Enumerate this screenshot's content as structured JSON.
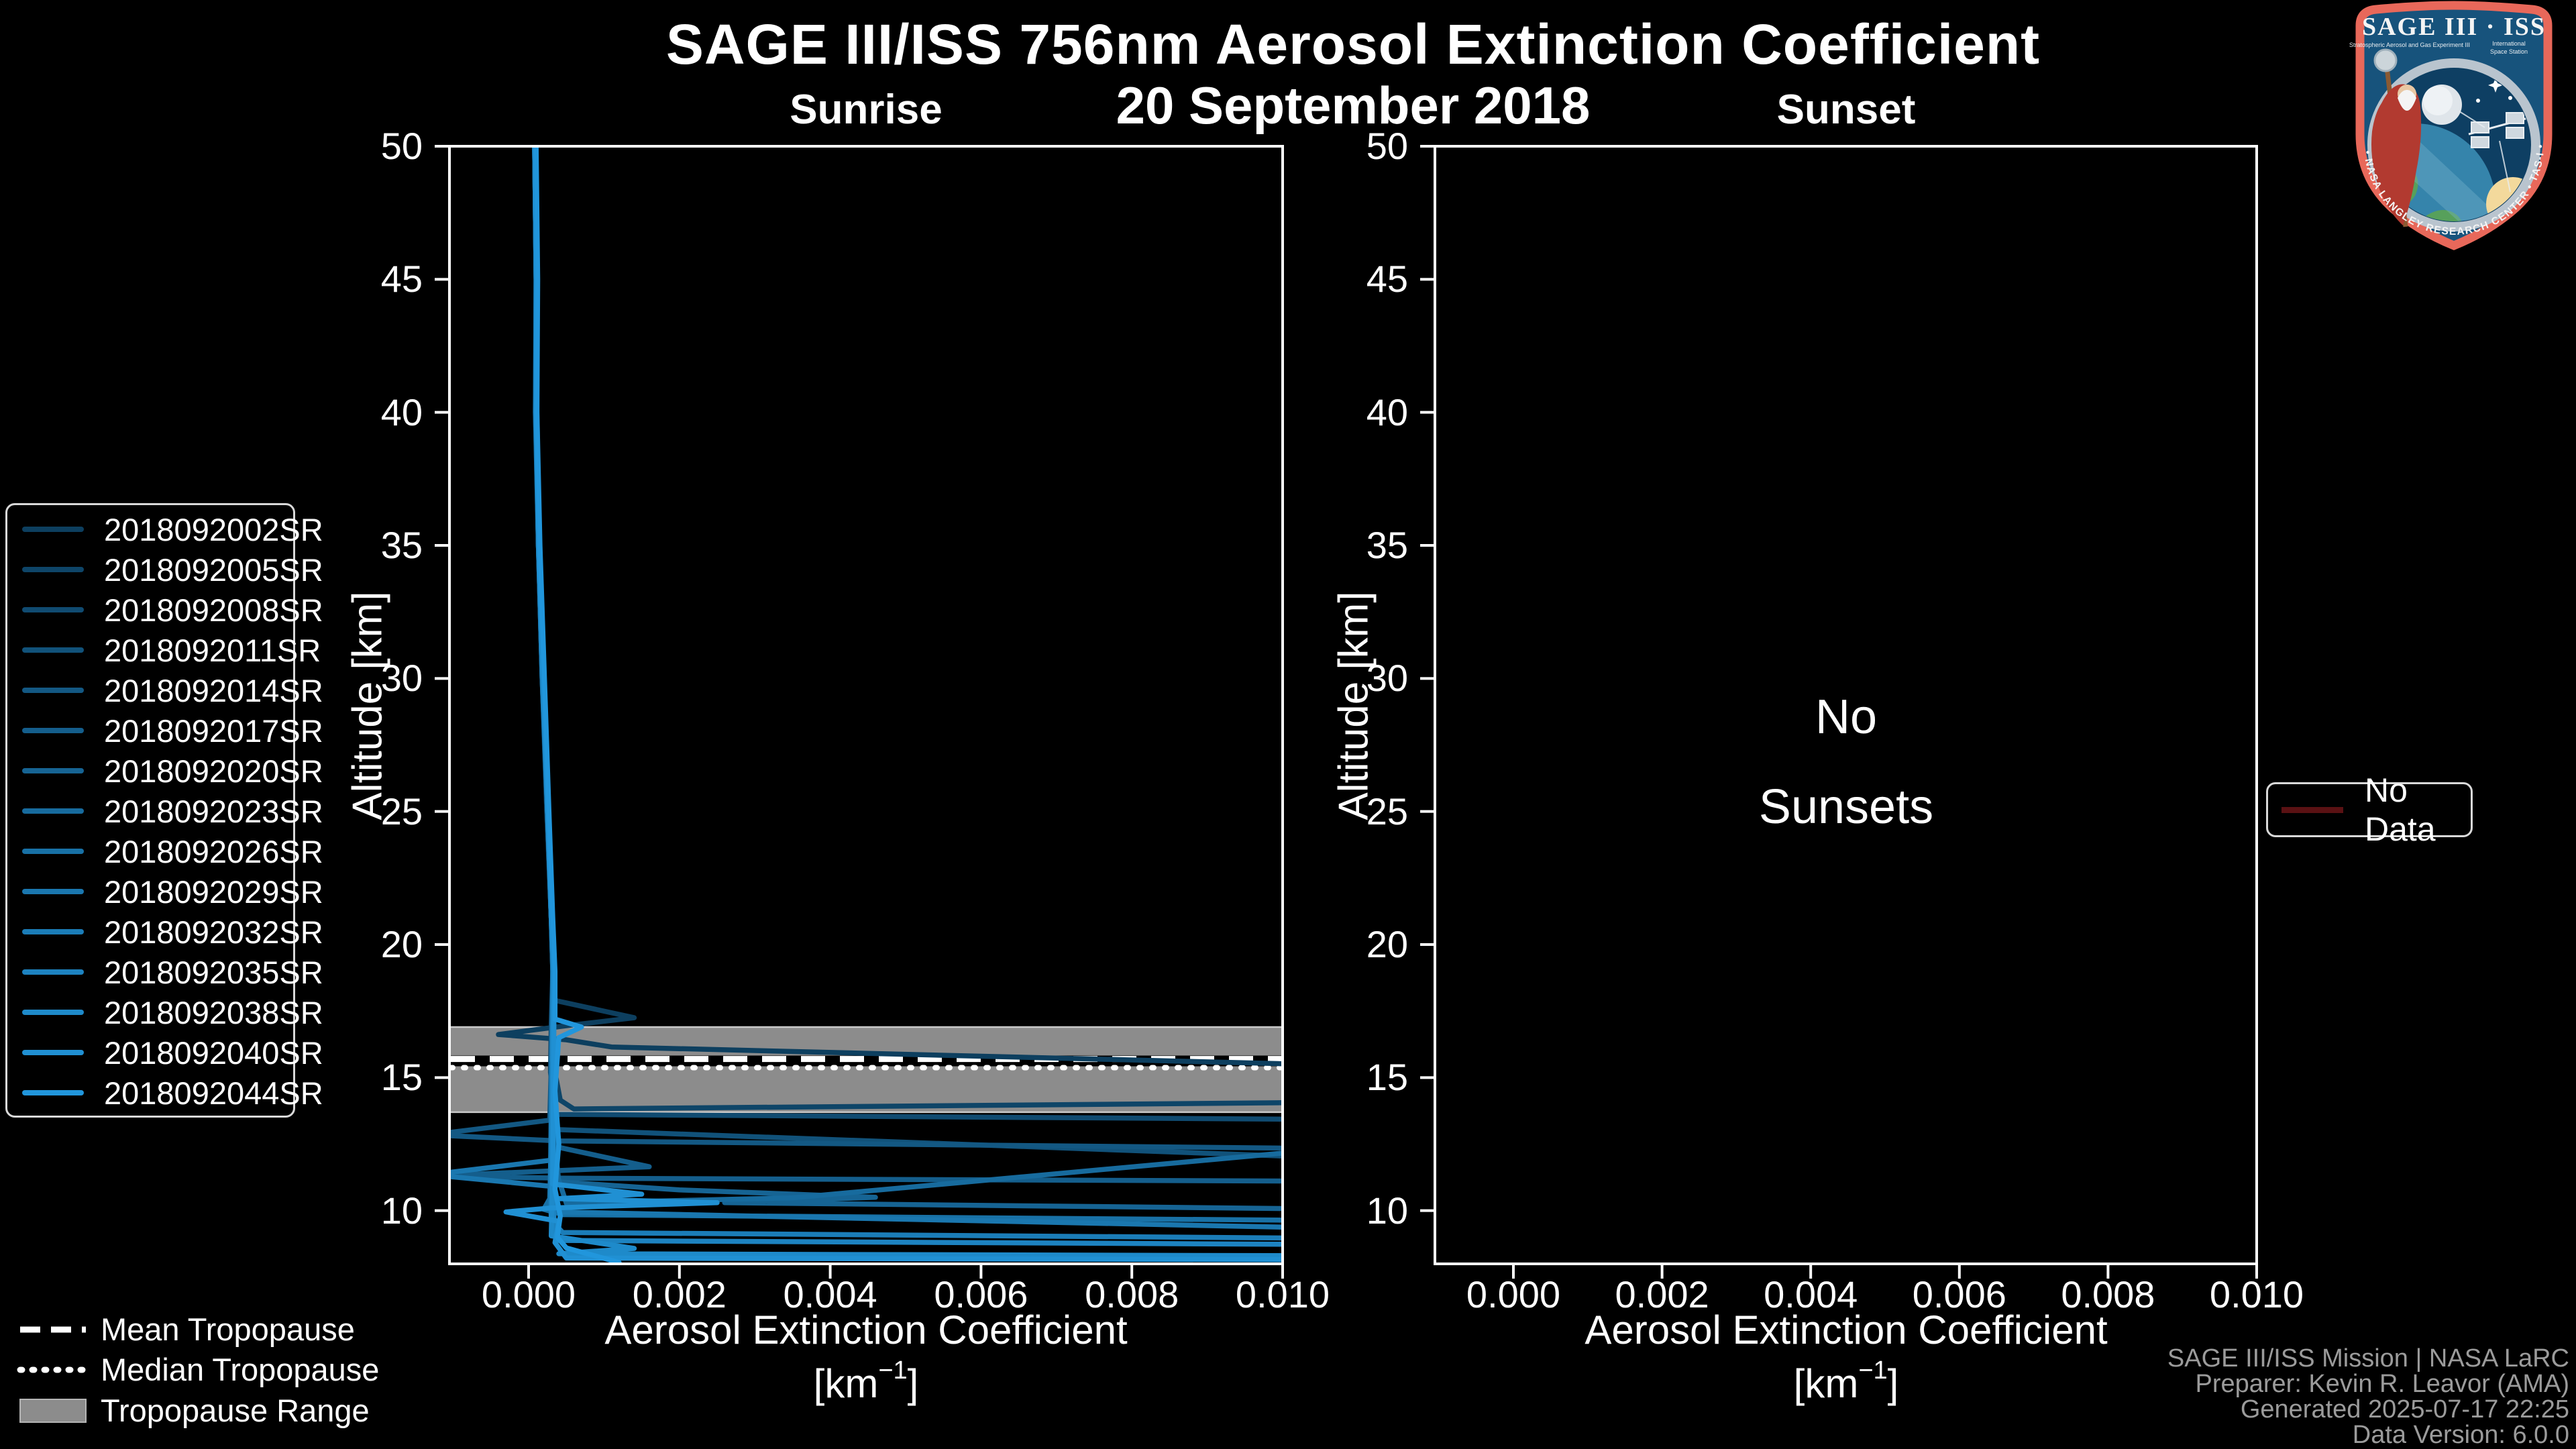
{
  "header": {
    "title": "SAGE III/ISS 756nm Aerosol Extinction Coefficient",
    "date": "20 September 2018"
  },
  "axes": {
    "y_label": "Altitude [km]",
    "x_label": "Aerosol Extinction Coefficient",
    "x_unit_base": "[km",
    "x_unit_sup": "−1",
    "x_unit_end": "]"
  },
  "tropopause_legend": {
    "mean_label": "Mean Tropopause",
    "median_label": "Median Tropopause",
    "range_label": "Tropopause Range"
  },
  "no_data_legend": {
    "label": "No Data",
    "line_color": "#5a1113"
  },
  "attribution": {
    "lines": [
      "SAGE III/ISS Mission | NASA LaRC",
      "Preparer: Kevin R. Leavor (AMA)",
      "Generated 2025-07-17 22:25",
      "Data Version: 6.0.0"
    ]
  },
  "logo": {
    "title": "SAGE III · ISS",
    "subtitle_left": "Stratospheric Aerosol and Gas Experiment III",
    "subtitle_right_1": "International",
    "subtitle_right_2": "Space Station",
    "ring_text": "BALL • NASA LANGLEY RESEARCH CENTER • TAS-I • ESA",
    "border_color": "#e8685a",
    "field_color": "#17537c"
  },
  "colors": {
    "background": "#000000",
    "foreground": "#ffffff",
    "attribution_text": "#9b9b9b",
    "tropopause_band": "#8c8c8c"
  },
  "chart_data": [
    {
      "type": "line",
      "panel": "sunrise",
      "title": "Sunrise",
      "xlabel": "Aerosol Extinction Coefficient [km⁻¹]",
      "ylabel": "Altitude [km]",
      "xlim": [
        -0.00105,
        0.01
      ],
      "ylim": [
        8,
        50
      ],
      "x_ticks": [
        0.0,
        0.002,
        0.004,
        0.006,
        0.008,
        0.01
      ],
      "x_tick_labels": [
        "0.000",
        "0.002",
        "0.004",
        "0.006",
        "0.008",
        "0.010"
      ],
      "y_ticks": [
        50,
        45,
        40,
        35,
        30,
        25,
        20,
        15,
        10
      ],
      "y_tick_labels": [
        "50",
        "45",
        "40",
        "35",
        "30",
        "25",
        "20",
        "15",
        "10"
      ],
      "grid": false,
      "tropopause": {
        "mean_km": 15.7,
        "median_km": 15.55,
        "range_km": [
          13.7,
          16.9
        ]
      },
      "series": [
        {
          "name": "2018092002SR",
          "color": "#0d3f5f",
          "points": [
            [
              8e-05,
              50
            ],
            [
              0.0001,
              45
            ],
            [
              9e-05,
              40
            ],
            [
              0.00013,
              35
            ],
            [
              0.00018,
              30
            ],
            [
              0.00024,
              25
            ],
            [
              0.0003,
              21
            ],
            [
              0.00033,
              19
            ],
            [
              0.00035,
              17.9
            ],
            [
              0.0014,
              17.25
            ],
            [
              0.0005,
              16.95
            ],
            [
              -0.0004,
              16.62
            ],
            [
              0.0005,
              16.42
            ],
            [
              0.0011,
              16.15
            ],
            [
              0.011,
              15.45
            ]
          ]
        },
        {
          "name": "2018092005SR",
          "color": "#0e4568",
          "points": [
            [
              9e-05,
              50
            ],
            [
              0.00011,
              45
            ],
            [
              0.0001,
              40
            ],
            [
              0.00014,
              35
            ],
            [
              0.00019,
              30
            ],
            [
              0.00025,
              25
            ],
            [
              0.00031,
              21
            ],
            [
              0.00034,
              19
            ],
            [
              0.00032,
              17.6
            ],
            [
              0.0003,
              16.4
            ],
            [
              0.00035,
              15.2
            ],
            [
              0.00042,
              14.15
            ],
            [
              0.0006,
              13.82
            ],
            [
              0.011,
              14.08
            ]
          ]
        },
        {
          "name": "2018092008SR",
          "color": "#104b71",
          "points": [
            [
              8e-05,
              50
            ],
            [
              0.0001,
              45
            ],
            [
              0.0001,
              40
            ],
            [
              0.00013,
              35
            ],
            [
              0.00018,
              30
            ],
            [
              0.00025,
              25
            ],
            [
              0.0003,
              21
            ],
            [
              0.00032,
              19
            ],
            [
              0.0003,
              17
            ],
            [
              0.00029,
              15.2
            ],
            [
              0.00036,
              13.62
            ],
            [
              0.011,
              13.42
            ]
          ]
        },
        {
          "name": "2018092011SR",
          "color": "#11527a",
          "points": [
            [
              9e-05,
              50
            ],
            [
              0.0001,
              45
            ],
            [
              0.00011,
              40
            ],
            [
              0.00014,
              35
            ],
            [
              0.00019,
              30
            ],
            [
              0.00026,
              25
            ],
            [
              0.00031,
              21
            ],
            [
              0.00033,
              19
            ],
            [
              0.00031,
              16.2
            ],
            [
              0.0003,
              14.2
            ],
            [
              0.00036,
              13.05
            ],
            [
              0.011,
              11.95
            ]
          ]
        },
        {
          "name": "2018092014SR",
          "color": "#135883",
          "points": [
            [
              8e-05,
              50
            ],
            [
              0.00011,
              45
            ],
            [
              0.0001,
              40
            ],
            [
              0.00014,
              35
            ],
            [
              0.00019,
              30
            ],
            [
              0.00025,
              25
            ],
            [
              0.00031,
              21
            ],
            [
              0.00033,
              19
            ],
            [
              0.0003,
              15.4
            ],
            [
              0.00028,
              13.4
            ],
            [
              -0.0013,
              12.85
            ],
            [
              0.0004,
              12.62
            ],
            [
              0.011,
              12.32
            ]
          ]
        },
        {
          "name": "2018092017SR",
          "color": "#145e8c",
          "points": [
            [
              9e-05,
              50
            ],
            [
              0.00011,
              45
            ],
            [
              0.0001,
              40
            ],
            [
              0.00014,
              35
            ],
            [
              0.0002,
              30
            ],
            [
              0.00026,
              25
            ],
            [
              0.00031,
              21
            ],
            [
              0.00034,
              19
            ],
            [
              0.00032,
              14.6
            ],
            [
              0.0004,
              12.38
            ],
            [
              0.0016,
              11.65
            ],
            [
              -0.0013,
              11.3
            ],
            [
              0.00045,
              11.22
            ],
            [
              0.011,
              11.1
            ]
          ]
        },
        {
          "name": "2018092020SR",
          "color": "#166494",
          "points": [
            [
              8e-05,
              50
            ],
            [
              0.0001,
              45
            ],
            [
              0.0001,
              40
            ],
            [
              0.00013,
              35
            ],
            [
              0.00019,
              30
            ],
            [
              0.00025,
              25
            ],
            [
              0.0003,
              21
            ],
            [
              0.00033,
              19
            ],
            [
              0.00031,
              13.6
            ],
            [
              0.0004,
              11.08
            ],
            [
              0.002,
              10.78
            ],
            [
              0.0046,
              10.5
            ],
            [
              0.0026,
              10.3
            ],
            [
              0.011,
              10.05
            ]
          ]
        },
        {
          "name": "2018092023SR",
          "color": "#176b9e",
          "points": [
            [
              9e-05,
              50
            ],
            [
              0.00011,
              45
            ],
            [
              0.0001,
              40
            ],
            [
              0.00014,
              35
            ],
            [
              0.00019,
              30
            ],
            [
              0.00026,
              25
            ],
            [
              0.00031,
              21
            ],
            [
              0.00034,
              19
            ],
            [
              0.00032,
              13.2
            ],
            [
              0.00035,
              11.6
            ],
            [
              0.0005,
              10.28
            ],
            [
              0.0035,
              10.48
            ],
            [
              0.011,
              12.42
            ]
          ]
        },
        {
          "name": "2018092026SR",
          "color": "#1871a6",
          "points": [
            [
              8e-05,
              50
            ],
            [
              0.0001,
              45
            ],
            [
              9e-05,
              40
            ],
            [
              0.00013,
              35
            ],
            [
              0.00018,
              30
            ],
            [
              0.00025,
              25
            ],
            [
              0.0003,
              21
            ],
            [
              0.00032,
              19
            ],
            [
              0.0003,
              12.6
            ],
            [
              0.00028,
              10.45
            ],
            [
              0.0002,
              10.05
            ],
            [
              0.00045,
              9.85
            ],
            [
              0.011,
              9.62
            ]
          ]
        },
        {
          "name": "2018092029SR",
          "color": "#1a77af",
          "points": [
            [
              9e-05,
              50
            ],
            [
              0.0001,
              45
            ],
            [
              0.0001,
              40
            ],
            [
              0.00014,
              35
            ],
            [
              0.00019,
              30
            ],
            [
              0.00025,
              25
            ],
            [
              0.00031,
              21
            ],
            [
              0.00033,
              19
            ],
            [
              0.00031,
              11.9
            ],
            [
              -0.0013,
              11.35
            ],
            [
              0.00035,
              10.9
            ],
            [
              0.00035,
              9.95
            ],
            [
              0.011,
              9.32
            ]
          ]
        },
        {
          "name": "2018092032SR",
          "color": "#1b7db8",
          "points": [
            [
              8e-05,
              50
            ],
            [
              0.0001,
              45
            ],
            [
              0.0001,
              40
            ],
            [
              0.00013,
              35
            ],
            [
              0.00018,
              30
            ],
            [
              0.00025,
              25
            ],
            [
              0.0003,
              21
            ],
            [
              0.00032,
              19
            ],
            [
              0.00029,
              11.2
            ],
            [
              0.0003,
              9.65
            ],
            [
              0.00045,
              9.18
            ],
            [
              0.011,
              8.95
            ]
          ]
        },
        {
          "name": "2018092035SR",
          "color": "#1d83c1",
          "points": [
            [
              9e-05,
              50
            ],
            [
              0.00011,
              45
            ],
            [
              0.0001,
              40
            ],
            [
              0.00014,
              35
            ],
            [
              0.00019,
              30
            ],
            [
              0.00026,
              25
            ],
            [
              0.00031,
              21
            ],
            [
              0.00033,
              19
            ],
            [
              0.00031,
              10.7
            ],
            [
              0.00035,
              9.25
            ],
            [
              0.0004,
              8.88
            ],
            [
              0.011,
              8.72
            ]
          ]
        },
        {
          "name": "2018092038SR",
          "color": "#1e8aca",
          "points": [
            [
              8e-05,
              50
            ],
            [
              0.0001,
              45
            ],
            [
              0.0001,
              40
            ],
            [
              0.00013,
              35
            ],
            [
              0.00019,
              30
            ],
            [
              0.00025,
              25
            ],
            [
              0.0003,
              21
            ],
            [
              0.00033,
              19
            ],
            [
              0.00031,
              10.2
            ],
            [
              0.0003,
              9.05
            ],
            [
              0.0014,
              8.58
            ],
            [
              0.0004,
              8.38
            ],
            [
              0.011,
              8.3
            ]
          ]
        },
        {
          "name": "2018092040SR",
          "color": "#2090d3",
          "points": [
            [
              9e-05,
              50
            ],
            [
              0.00011,
              45
            ],
            [
              0.0001,
              40
            ],
            [
              0.00014,
              35
            ],
            [
              0.0002,
              30
            ],
            [
              0.00026,
              25
            ],
            [
              0.00031,
              21
            ],
            [
              0.00034,
              19
            ],
            [
              0.00032,
              11.0
            ],
            [
              0.0015,
              10.62
            ],
            [
              0.0004,
              10.45
            ],
            [
              0.0025,
              10.3
            ],
            [
              0.0003,
              10.1
            ],
            [
              -0.0003,
              9.95
            ],
            [
              0.0004,
              9.6
            ],
            [
              0.00035,
              8.8
            ],
            [
              0.0005,
              8.22
            ],
            [
              0.011,
              8.15
            ]
          ]
        },
        {
          "name": "2018092044SR",
          "color": "#2196dc",
          "points": [
            [
              0.0001,
              50
            ],
            [
              0.00012,
              45
            ],
            [
              0.00011,
              40
            ],
            [
              0.00015,
              35
            ],
            [
              0.00021,
              30
            ],
            [
              0.00027,
              25
            ],
            [
              0.00032,
              21
            ],
            [
              0.00035,
              19
            ],
            [
              0.00035,
              17.2
            ],
            [
              0.0007,
              16.9
            ],
            [
              0.0004,
              16.5
            ],
            [
              0.00035,
              14.5
            ],
            [
              0.0004,
              12.5
            ],
            [
              0.00035,
              10.8
            ],
            [
              0.00042,
              9.8
            ],
            [
              0.00038,
              9.0
            ],
            [
              0.0005,
              8.6
            ],
            [
              0.0012,
              8.05
            ]
          ]
        }
      ]
    },
    {
      "type": "line",
      "panel": "sunset",
      "title": "Sunset",
      "xlabel": "Aerosol Extinction Coefficient [km⁻¹]",
      "ylabel": "Altitude [km]",
      "xlim": [
        -0.00105,
        0.01
      ],
      "ylim": [
        8,
        50
      ],
      "x_ticks": [
        0.0,
        0.002,
        0.004,
        0.006,
        0.008,
        0.01
      ],
      "x_tick_labels": [
        "0.000",
        "0.002",
        "0.004",
        "0.006",
        "0.008",
        "0.010"
      ],
      "y_ticks": [
        50,
        45,
        40,
        35,
        30,
        25,
        20,
        15,
        10
      ],
      "y_tick_labels": [
        "50",
        "45",
        "40",
        "35",
        "30",
        "25",
        "20",
        "15",
        "10"
      ],
      "grid": false,
      "message_line1": "No",
      "message_line2": "Sunsets",
      "series": []
    }
  ]
}
